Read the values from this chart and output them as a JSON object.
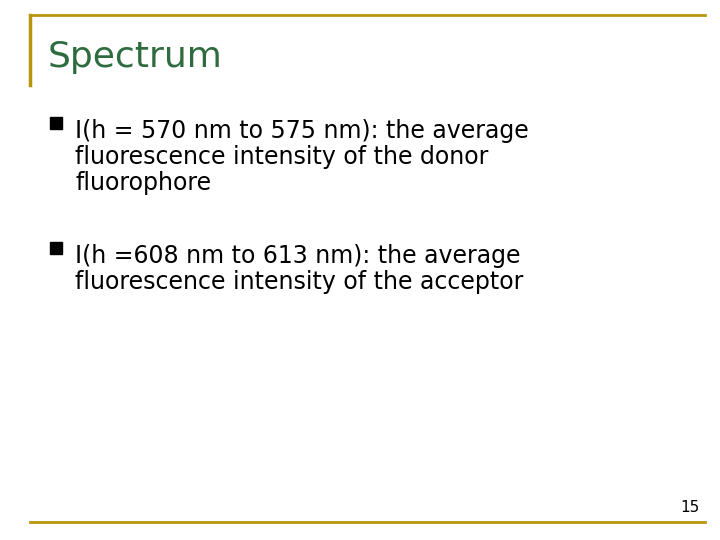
{
  "title": "Spectrum",
  "title_color": "#2E6B3E",
  "background_color": "#FFFFFF",
  "border_color": "#B8960C",
  "bullet_color": "#7F7F7F",
  "text_color": "#000000",
  "bullet1_line1": "I(h = 570 nm to 575 nm): the average",
  "bullet1_line2": "fluorescence intensity of the donor",
  "bullet1_line3": "fluorophore",
  "bullet2_line1": "I(h =608 nm to 613 nm): the average",
  "bullet2_line2": "fluorescence intensity of the acceptor",
  "page_number": "15",
  "title_fontsize": 26,
  "body_fontsize": 17,
  "page_num_fontsize": 11
}
